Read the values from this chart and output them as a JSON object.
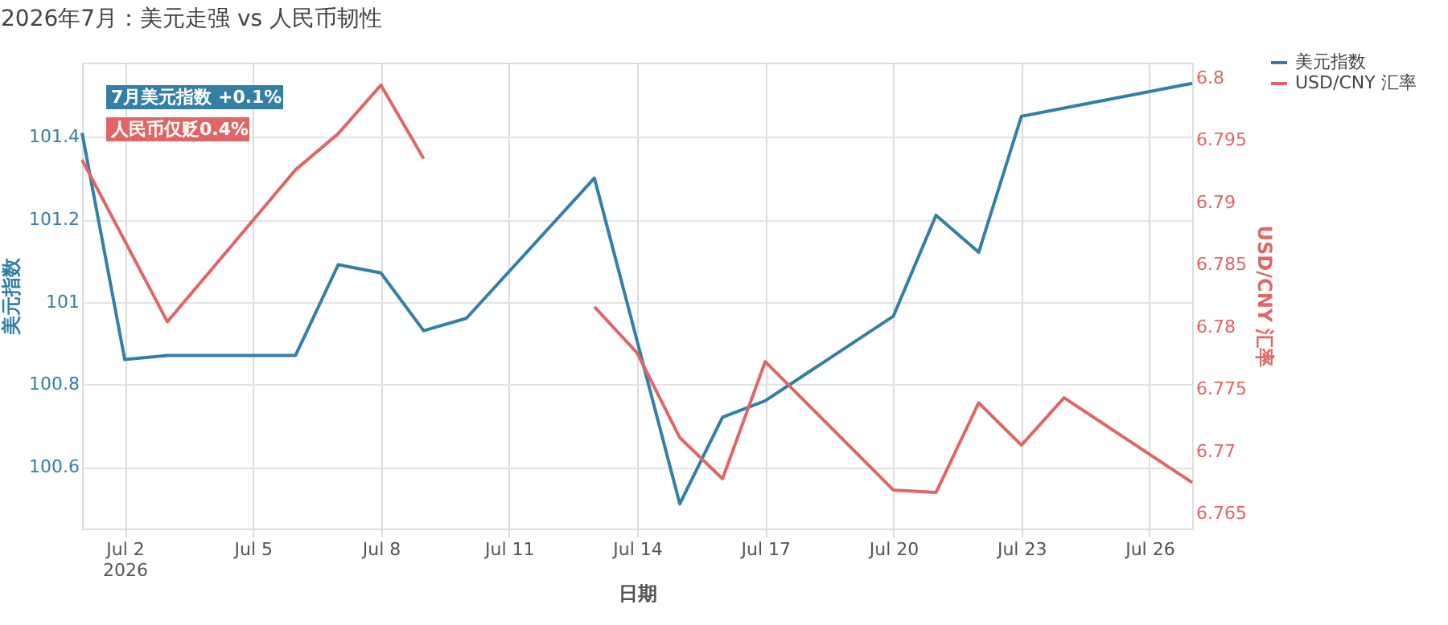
{
  "chart_data": {
    "type": "line",
    "title": "2026年7月：美元走强 vs 人民币韧性",
    "xlabel": "日期",
    "ylabel": "美元指数",
    "y2label": "USD/CNY 汇率",
    "series": [
      {
        "name": "美元指数",
        "color": "#337fa6",
        "x": [
          "2026-07-01",
          "2026-07-02",
          "2026-07-03",
          "2026-07-06",
          "2026-07-07",
          "2026-07-08",
          "2026-07-09",
          "2026-07-10",
          "2026-07-13",
          "2026-07-15",
          "2026-07-16",
          "2026-07-17",
          "2026-07-20",
          "2026-07-21",
          "2026-07-22",
          "2026-07-23",
          "2026-07-24",
          "2026-07-27"
        ],
        "values": [
          101.41,
          100.86,
          100.87,
          100.87,
          101.09,
          101.07,
          100.93,
          100.96,
          101.3,
          100.51,
          100.72,
          100.76,
          100.965,
          101.21,
          101.12,
          101.45,
          101.47,
          101.53
        ]
      },
      {
        "name": "USD/CNY 汇率",
        "color": "#e06666",
        "axis": "y2",
        "x": [
          "2026-07-01",
          "2026-07-03",
          "2026-07-06",
          "2026-07-07",
          "2026-07-08",
          "2026-07-09",
          "2026-07-10",
          "2026-07-13",
          "2026-07-14",
          "2026-07-15",
          "2026-07-16",
          "2026-07-17",
          "2026-07-20",
          "2026-07-21",
          "2026-07-22",
          "2026-07-23",
          "2026-07-24",
          "2026-07-27"
        ],
        "values": [
          6.7934,
          6.7804,
          6.7926,
          6.7955,
          6.7994,
          6.7935,
          null,
          6.7816,
          6.7779,
          6.7711,
          6.7678,
          6.7772,
          6.7669,
          6.7667,
          6.7739,
          6.7705,
          6.7743,
          6.7675
        ]
      }
    ],
    "xlim": [
      "2026-07-01",
      "2026-07-27"
    ],
    "xticks": [
      {
        "value": "2026-07-02",
        "label": "Jul 2\n2026"
      },
      {
        "value": "2026-07-05",
        "label": "Jul 5"
      },
      {
        "value": "2026-07-08",
        "label": "Jul 8"
      },
      {
        "value": "2026-07-11",
        "label": "Jul 11"
      },
      {
        "value": "2026-07-14",
        "label": "Jul 14"
      },
      {
        "value": "2026-07-17",
        "label": "Jul 17"
      },
      {
        "value": "2026-07-20",
        "label": "Jul 20"
      },
      {
        "value": "2026-07-23",
        "label": "Jul 23"
      },
      {
        "value": "2026-07-26",
        "label": "Jul 26"
      }
    ],
    "ylim": [
      100.45,
      101.58
    ],
    "yticks": [
      100.6,
      100.8,
      101,
      101.2,
      101.4
    ],
    "y2lim": [
      6.7638,
      6.8012
    ],
    "y2ticks": [
      6.765,
      6.77,
      6.775,
      6.78,
      6.785,
      6.79,
      6.795,
      6.8
    ],
    "annotations": [
      "7月美元指数 +0.1%",
      "人民币仅贬0.4%"
    ],
    "grid": true,
    "legend": "top right",
    "line_style": "solid",
    "marker": "none"
  }
}
